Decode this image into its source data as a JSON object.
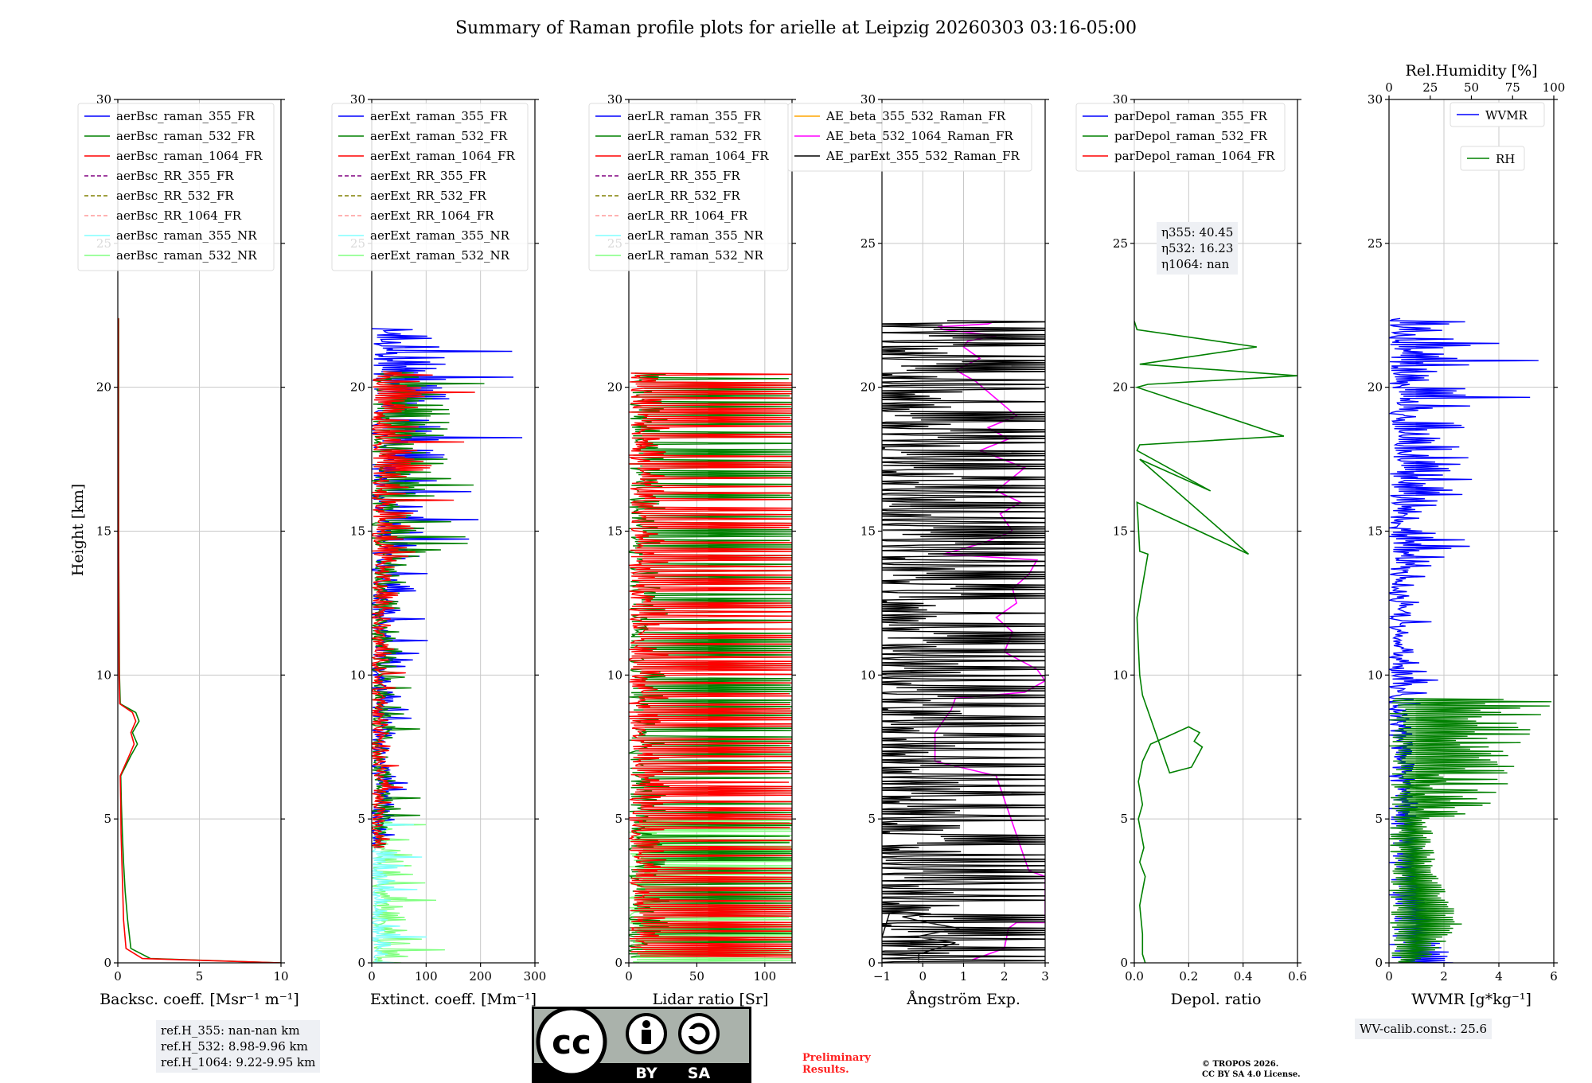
{
  "figure": {
    "title": "Summary of Raman profile plots for arielle at Leipzig 20260303 03:16-05:00",
    "y_label": "Height [km]",
    "ref_heights": [
      "ref.H_355: nan-nan km",
      "ref.H_532: 8.98-9.96 km",
      "ref.H_1064: 9.22-9.95 km"
    ],
    "eta_lines": [
      "η355: 40.45",
      "η532: 16.23",
      "η1064: nan"
    ],
    "wv_calib": "WV-calib.const.: 25.6",
    "preliminary": [
      "Preliminary",
      "Results."
    ],
    "copyright": [
      "© TROPOS 2026.",
      "CC BY SA 4.0 License."
    ],
    "license_logo": {
      "cc": "cc",
      "by": "BY",
      "sa": "SA"
    },
    "colors": {
      "blue": "#0000ff",
      "green": "#008000",
      "red": "#ff0000",
      "purple": "#800080",
      "olive": "#808000",
      "salmon": "#ff9999",
      "cyan": "#80ffff",
      "lightgreen": "#80ff80",
      "orange": "#ffa500",
      "magenta": "#ff00ff",
      "black": "#000000"
    }
  },
  "chart_data": [
    {
      "type": "line",
      "id": "backscatter",
      "xlabel": "Backsc. coeff. [Msr⁻¹ m⁻¹]",
      "ylabel": "Height [km]",
      "xlim": [
        0,
        10
      ],
      "ylim": [
        0,
        30
      ],
      "xticks": [
        0,
        5,
        10
      ],
      "yticks": [
        0,
        5,
        10,
        15,
        20,
        25,
        30
      ],
      "legend_position": "top-left",
      "legend": [
        {
          "name": "aerBsc_raman_355_FR",
          "color": "#0000ff",
          "style": "solid"
        },
        {
          "name": "aerBsc_raman_532_FR",
          "color": "#008000",
          "style": "solid"
        },
        {
          "name": "aerBsc_raman_1064_FR",
          "color": "#ff0000",
          "style": "solid"
        },
        {
          "name": "aerBsc_RR_355_FR",
          "color": "#800080",
          "style": "dashed"
        },
        {
          "name": "aerBsc_RR_532_FR",
          "color": "#808000",
          "style": "dashed"
        },
        {
          "name": "aerBsc_RR_1064_FR",
          "color": "#ff9999",
          "style": "dashed"
        },
        {
          "name": "aerBsc_raman_355_NR",
          "color": "#80ffff",
          "style": "solid"
        },
        {
          "name": "aerBsc_raman_532_NR",
          "color": "#80ff80",
          "style": "solid"
        }
      ],
      "series": [
        {
          "name": "aerBsc_raman_532_FR",
          "color": "#008000",
          "x": [
            10,
            2,
            0.8,
            0.6,
            0.45,
            0.35,
            0.28,
            0.22,
            0.18,
            0.8,
            1.2,
            0.9,
            1.3,
            1.1,
            0.15,
            0.1,
            0.05,
            0.05,
            0.05
          ],
          "y": [
            0,
            0.15,
            0.5,
            1.5,
            2.5,
            3.5,
            4.5,
            5.5,
            6.5,
            7.2,
            7.6,
            8.0,
            8.4,
            8.7,
            9.0,
            10,
            15,
            20,
            22.4
          ]
        },
        {
          "name": "aerBsc_raman_1064_FR",
          "color": "#ff0000",
          "x": [
            10,
            1.5,
            0.5,
            0.35,
            0.3,
            0.25,
            0.2,
            0.18,
            0.15,
            0.7,
            1.0,
            0.8,
            1.1,
            0.9,
            0.12,
            0.08,
            0.04,
            0.03,
            0.03
          ],
          "y": [
            0,
            0.15,
            0.5,
            1.5,
            2.5,
            3.5,
            4.5,
            5.5,
            6.5,
            7.2,
            7.6,
            8.0,
            8.4,
            8.7,
            9.0,
            10,
            15,
            20,
            22.4
          ]
        }
      ]
    },
    {
      "type": "line",
      "id": "extinction",
      "xlabel": "Extinct. coeff. [Mm⁻¹]",
      "xlim": [
        0,
        300
      ],
      "ylim": [
        0,
        30
      ],
      "xticks": [
        0,
        100,
        200,
        300
      ],
      "yticks": [
        0,
        5,
        10,
        15,
        20,
        25,
        30
      ],
      "legend_position": "top-left",
      "legend": [
        {
          "name": "aerExt_raman_355_FR",
          "color": "#0000ff",
          "style": "solid"
        },
        {
          "name": "aerExt_raman_532_FR",
          "color": "#008000",
          "style": "solid"
        },
        {
          "name": "aerExt_raman_1064_FR",
          "color": "#ff0000",
          "style": "solid"
        },
        {
          "name": "aerExt_RR_355_FR",
          "color": "#800080",
          "style": "dashed"
        },
        {
          "name": "aerExt_RR_532_FR",
          "color": "#808000",
          "style": "dashed"
        },
        {
          "name": "aerExt_RR_1064_FR",
          "color": "#ff9999",
          "style": "dashed"
        },
        {
          "name": "aerExt_raman_355_NR",
          "color": "#80ffff",
          "style": "solid"
        },
        {
          "name": "aerExt_raman_532_NR",
          "color": "#80ff80",
          "style": "solid"
        }
      ],
      "series": [
        {
          "name": "aerExt_raman_532_NR",
          "color": "#80ff80",
          "noisy": true,
          "y_range": [
            0,
            5
          ],
          "x_max": 260,
          "seed": 11
        },
        {
          "name": "aerExt_raman_355_NR",
          "color": "#80ffff",
          "noisy": true,
          "y_range": [
            0,
            5
          ],
          "x_max": 140,
          "seed": 12
        },
        {
          "name": "aerExt_raman_355_FR",
          "color": "#0000ff",
          "noisy": true,
          "y_range": [
            4,
            22
          ],
          "x_max": 300,
          "seed": 13
        },
        {
          "name": "aerExt_raman_532_FR",
          "color": "#008000",
          "noisy": true,
          "y_range": [
            4,
            20.5
          ],
          "x_max": 300,
          "seed": 14
        },
        {
          "name": "aerExt_raman_1064_FR",
          "color": "#ff0000",
          "noisy": true,
          "y_range": [
            4,
            20.5
          ],
          "x_max": 240,
          "seed": 15
        }
      ]
    },
    {
      "type": "line",
      "id": "lidar_ratio",
      "xlabel": "Lidar ratio [Sr]",
      "xlim": [
        0,
        120
      ],
      "ylim": [
        0,
        30
      ],
      "xticks": [
        0,
        50,
        100
      ],
      "yticks": [
        0,
        5,
        10,
        15,
        20,
        25,
        30
      ],
      "legend_position": "top-left",
      "legend": [
        {
          "name": "aerLR_raman_355_FR",
          "color": "#0000ff",
          "style": "solid"
        },
        {
          "name": "aerLR_raman_532_FR",
          "color": "#008000",
          "style": "solid"
        },
        {
          "name": "aerLR_raman_1064_FR",
          "color": "#ff0000",
          "style": "solid"
        },
        {
          "name": "aerLR_RR_355_FR",
          "color": "#800080",
          "style": "dashed"
        },
        {
          "name": "aerLR_RR_532_FR",
          "color": "#808000",
          "style": "dashed"
        },
        {
          "name": "aerLR_RR_1064_FR",
          "color": "#ff9999",
          "style": "dashed"
        },
        {
          "name": "aerLR_raman_355_NR",
          "color": "#80ffff",
          "style": "solid"
        },
        {
          "name": "aerLR_raman_532_NR",
          "color": "#80ff80",
          "style": "solid"
        }
      ],
      "series": [
        {
          "name": "aerLR_raman_532_NR",
          "color": "#80ff80",
          "noisy": true,
          "y_range": [
            0,
            5
          ],
          "x_max": 120,
          "seed": 21,
          "saturate": true
        },
        {
          "name": "aerLR_raman_532_FR",
          "color": "#008000",
          "noisy": true,
          "y_range": [
            0.2,
            20.5
          ],
          "x_max": 120,
          "seed": 22,
          "saturate": true
        },
        {
          "name": "aerLR_raman_1064_FR",
          "color": "#ff0000",
          "noisy": true,
          "y_range": [
            0.2,
            20.5
          ],
          "x_max": 120,
          "seed": 23,
          "saturate": true
        }
      ]
    },
    {
      "type": "line",
      "id": "angstrom",
      "xlabel": "Ångström Exp.",
      "xlim": [
        -1,
        3
      ],
      "ylim": [
        0,
        30
      ],
      "xticks": [
        -1,
        0,
        1,
        2,
        3
      ],
      "yticks": [
        0,
        5,
        10,
        15,
        20,
        25,
        30
      ],
      "legend_position": "top-left",
      "legend": [
        {
          "name": "AE_beta_355_532_Raman_FR",
          "color": "#ffa500",
          "style": "solid"
        },
        {
          "name": "AE_beta_532_1064_Raman_FR",
          "color": "#ff00ff",
          "style": "solid"
        },
        {
          "name": "AE_parExt_355_532_Raman_FR",
          "color": "#000000",
          "style": "solid"
        }
      ],
      "series": [
        {
          "name": "AE_beta_532_1064_Raman_FR",
          "color": "#ff00ff",
          "x": [
            1.2,
            2.0,
            2.1,
            2.3,
            3.0,
            3.0,
            2.6,
            1.8,
            0.3,
            0.3,
            0.7,
            0.8,
            2.5,
            3.0,
            2.8,
            2.0,
            2.2,
            1.8,
            2.3,
            2.2,
            2.6,
            2.8,
            0.5,
            1.5,
            2.2,
            1.9,
            2.4,
            1.8,
            2.5,
            1.4,
            2.1,
            1.6,
            2.3,
            1.8,
            1.3,
            0.8,
            1.4,
            1.0,
            1.1,
            1.8,
            0.5,
            0.4,
            1.6,
            1.8
          ],
          "y": [
            0.1,
            0.5,
            1.2,
            1.4,
            1.4,
            3.0,
            3.2,
            6.5,
            7.0,
            8.0,
            8.8,
            9.2,
            9.4,
            9.8,
            10.2,
            10.8,
            11.5,
            12.0,
            12.5,
            13.0,
            13.5,
            14.0,
            14.2,
            14.6,
            15.0,
            15.6,
            16.0,
            16.4,
            17.2,
            17.8,
            18.2,
            18.6,
            19.0,
            19.6,
            20.2,
            20.6,
            21.0,
            21.4,
            21.6,
            21.8,
            22.0,
            22.1,
            22.2,
            22.3
          ]
        },
        {
          "name": "AE_parExt_355_532_Raman_FR",
          "color": "#000000",
          "noisy": true,
          "y_range": [
            0,
            22.3
          ],
          "x_min": -1,
          "x_max": 3,
          "seed": 31,
          "saturate": true,
          "low": {
            "x": [
              -0.1,
              -0.1,
              0.8,
              -0.2,
              0.9,
              0.1,
              -0.5,
              0.2,
              -0.8
            ],
            "y": [
              0,
              0.3,
              0.7,
              0.9,
              1.2,
              1.4,
              1.6,
              1.7,
              1.8
            ]
          }
        }
      ]
    },
    {
      "type": "line",
      "id": "depol",
      "xlabel": "Depol. ratio",
      "xlim": [
        0,
        0.6
      ],
      "ylim": [
        0,
        30
      ],
      "xticks": [
        0.0,
        0.2,
        0.4,
        0.6
      ],
      "xticklabels": [
        "0.0",
        "0.2",
        "0.4",
        "0.6"
      ],
      "yticks": [
        0,
        5,
        10,
        15,
        20,
        25,
        30
      ],
      "legend_position": "top-left",
      "legend": [
        {
          "name": "parDepol_raman_355_FR",
          "color": "#0000ff",
          "style": "solid"
        },
        {
          "name": "parDepol_raman_532_FR",
          "color": "#008000",
          "style": "solid"
        },
        {
          "name": "parDepol_raman_1064_FR",
          "color": "#ff0000",
          "style": "solid"
        }
      ],
      "series": [
        {
          "name": "parDepol_raman_532_FR",
          "color": "#008000",
          "x": [
            0.04,
            0.03,
            0.03,
            0.02,
            0.04,
            0.02,
            0.035,
            0.015,
            0.03,
            0.015,
            0.02,
            0.03,
            0.06,
            0.2,
            0.24,
            0.22,
            0.25,
            0.21,
            0.13,
            0.03,
            0.02,
            0.01,
            0.05,
            0.02,
            0.01,
            0.42,
            0.02,
            0.28,
            0.01,
            0.02,
            0.55,
            0.01,
            0.05,
            0.6,
            0.02,
            0.45,
            0.01,
            0.0
          ],
          "y": [
            0,
            0.3,
            1.0,
            2.0,
            3.0,
            3.5,
            4.0,
            5.0,
            5.5,
            6.3,
            6.5,
            7.0,
            7.6,
            8.2,
            8.0,
            7.7,
            7.5,
            6.8,
            6.6,
            9.3,
            10,
            12,
            14.2,
            14.3,
            16.0,
            14.2,
            17.5,
            16.4,
            17.8,
            18.0,
            18.3,
            20.0,
            20.1,
            20.4,
            20.8,
            21.4,
            22.0,
            22.3
          ]
        }
      ]
    },
    {
      "type": "line",
      "id": "wvmr",
      "xlabel": "WVMR [g*kg⁻¹]",
      "top_xlabel": "Rel.Humidity [%]",
      "xlim": [
        0,
        6
      ],
      "ylim": [
        0,
        30
      ],
      "top_xlim": [
        0,
        100
      ],
      "xticks": [
        0,
        2,
        4,
        6
      ],
      "top_xticks": [
        0,
        25,
        50,
        75,
        100
      ],
      "yticks": [
        0,
        5,
        10,
        15,
        20,
        25,
        30
      ],
      "legend_position": "top-right",
      "legend": [
        {
          "name": "WVMR",
          "color": "#0000ff",
          "style": "solid"
        },
        {
          "name": "RH",
          "color": "#008000",
          "style": "solid"
        }
      ],
      "series": [
        {
          "name": "WVMR",
          "color": "#0000ff",
          "noisy": true,
          "y_range": [
            0,
            22.4
          ],
          "x_max": 6,
          "seed": 41
        },
        {
          "name": "RH",
          "color": "#008000",
          "noisy": true,
          "y_range": [
            0,
            9.2
          ],
          "x_max": 6,
          "seed": 42
        }
      ]
    }
  ]
}
